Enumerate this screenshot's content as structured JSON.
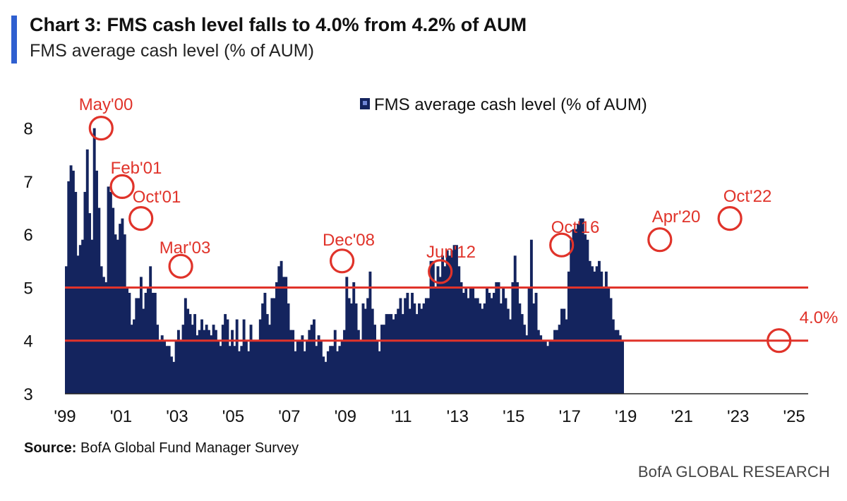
{
  "header": {
    "title": "Chart 3: FMS cash level falls to 4.0% from 4.2% of AUM",
    "subtitle": "FMS average cash level (% of AUM)"
  },
  "footer": {
    "source_label": "Source:",
    "source_text": "BofA Global Fund Manager Survey",
    "brand": "BofA GLOBAL RESEARCH"
  },
  "colors": {
    "accent": "#2f5fd0",
    "bars": "#14245e",
    "reference_lines": "#e0332a",
    "annotations": "#e0332a"
  },
  "chart_data": {
    "type": "bar",
    "title": "",
    "xlabel": "",
    "ylabel": "",
    "xlim": [
      1999.0,
      2025.5
    ],
    "ylim": [
      3,
      8.5
    ],
    "yticks": [
      3,
      4,
      5,
      6,
      7,
      8
    ],
    "xticks": [
      "'99",
      "'01",
      "'03",
      "'05",
      "'07",
      "'09",
      "'11",
      "'13",
      "'15",
      "'17",
      "'19",
      "'21",
      "'23",
      "'25"
    ],
    "legend": {
      "label": "FMS average cash level (% of AUM)",
      "position": "top-center"
    },
    "reference_lines": [
      5.0,
      4.0
    ],
    "series": [
      {
        "name": "FMS average cash level (% of AUM)",
        "x_start": 1999.0,
        "interval": "monthly",
        "values": [
          5.4,
          7.0,
          7.3,
          7.2,
          6.8,
          5.6,
          5.8,
          5.9,
          6.8,
          7.6,
          6.4,
          5.9,
          8.0,
          7.2,
          6.5,
          5.4,
          5.2,
          5.1,
          6.9,
          6.8,
          6.5,
          6.0,
          5.9,
          6.2,
          6.3,
          6.0,
          5.0,
          4.9,
          4.3,
          4.4,
          4.8,
          4.8,
          5.2,
          4.6,
          4.9,
          5.0,
          5.4,
          4.9,
          4.9,
          4.3,
          4.0,
          4.1,
          4.0,
          3.9,
          3.9,
          3.7,
          3.6,
          4.0,
          4.2,
          4.0,
          4.3,
          4.8,
          4.6,
          4.5,
          4.3,
          4.5,
          4.1,
          4.2,
          4.4,
          4.2,
          4.3,
          4.2,
          4.1,
          4.3,
          4.2,
          4.0,
          3.9,
          4.3,
          4.5,
          4.4,
          3.9,
          4.2,
          3.9,
          4.4,
          3.8,
          3.9,
          4.4,
          4.0,
          3.8,
          4.3,
          4.0,
          4.0,
          4.0,
          4.4,
          4.7,
          4.9,
          4.5,
          4.3,
          4.8,
          4.8,
          5.1,
          5.4,
          5.5,
          5.2,
          5.2,
          4.7,
          4.2,
          4.2,
          3.8,
          4.0,
          4.0,
          4.1,
          3.8,
          4.0,
          4.2,
          4.3,
          4.4,
          3.9,
          4.1,
          4.0,
          3.7,
          3.6,
          3.8,
          3.9,
          3.9,
          4.2,
          3.8,
          3.9,
          4.0,
          4.2,
          5.2,
          4.8,
          4.7,
          5.1,
          4.7,
          4.2,
          4.0,
          4.7,
          4.6,
          4.8,
          5.3,
          4.6,
          4.3,
          4.0,
          3.8,
          4.3,
          4.3,
          4.5,
          4.5,
          4.5,
          4.4,
          4.5,
          4.6,
          4.8,
          4.5,
          4.8,
          4.9,
          4.6,
          4.9,
          4.7,
          4.5,
          4.7,
          4.6,
          4.7,
          4.8,
          4.8,
          5.5,
          5.5,
          5.0,
          5.4,
          5.2,
          5.6,
          5.4,
          5.7,
          5.6,
          5.7,
          5.8,
          5.8,
          5.4,
          5.1,
          4.9,
          5.0,
          4.8,
          5.0,
          5.0,
          4.8,
          4.8,
          4.7,
          4.6,
          4.7,
          5.0,
          4.9,
          4.8,
          4.9,
          5.1,
          5.1,
          4.7,
          5.0,
          4.8,
          4.6,
          4.4,
          5.1,
          5.6,
          5.1,
          4.7,
          4.5,
          4.3,
          4.1,
          5.0,
          5.9,
          4.7,
          4.9,
          4.2,
          4.1,
          4.0,
          4.0,
          3.9,
          4.0,
          4.0,
          4.2,
          4.2,
          4.3,
          4.6,
          4.6,
          4.4,
          5.3,
          5.9,
          6.1,
          6.1,
          6.2,
          6.3,
          6.3,
          6.0,
          5.9,
          5.5,
          5.4,
          5.3,
          5.4,
          5.5,
          5.3,
          5.0,
          5.3,
          5.0,
          4.8,
          4.4,
          4.2,
          4.2,
          4.1,
          4.0
        ]
      }
    ],
    "annotations": [
      {
        "label": "May'00",
        "x": 2000.29,
        "y": 8.0
      },
      {
        "label": "Feb'01",
        "x": 2001.04,
        "y": 6.9
      },
      {
        "label": "Oct'01",
        "x": 2001.71,
        "y": 6.3
      },
      {
        "label": "Mar'03",
        "x": 2003.13,
        "y": 5.4
      },
      {
        "label": "Dec'08",
        "x": 2008.88,
        "y": 5.5
      },
      {
        "label": "Jun'12",
        "x": 2012.38,
        "y": 5.3
      },
      {
        "label": "Oct'16",
        "x": 2016.71,
        "y": 5.8
      },
      {
        "label": "Apr'20",
        "x": 2020.21,
        "y": 5.9
      },
      {
        "label": "Oct'22",
        "x": 2022.71,
        "y": 6.3
      },
      {
        "label": "4.0%",
        "x": 2024.46,
        "y": 4.0
      }
    ]
  }
}
